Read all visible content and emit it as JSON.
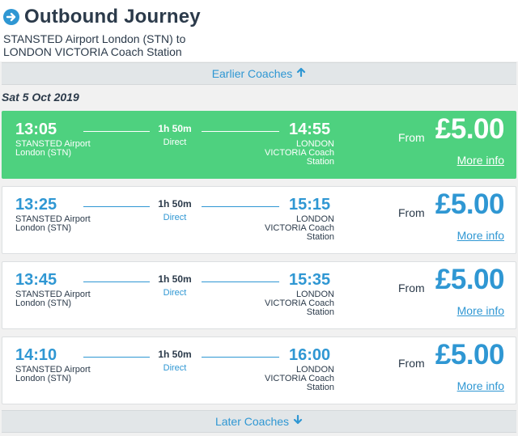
{
  "header": {
    "title": "Outbound Journey",
    "route_from": "STANSTED Airport London (STN) to",
    "route_to": "LONDON VICTORIA Coach Station"
  },
  "earlier_label": "Earlier Coaches",
  "later_label": "Later Coaches",
  "date_label": "Sat 5 Oct 2019",
  "journeys": [
    {
      "depart": "13:05",
      "arrive": "14:55",
      "duration": "1h 50m",
      "type": "Direct",
      "from_stop_line1": "STANSTED Airport",
      "from_stop_line2": "London (STN)",
      "to_stop_line1": "LONDON",
      "to_stop_line2": "VICTORIA Coach",
      "to_stop_line3": "Station",
      "from_label": "From",
      "price": "£5.00",
      "more_info": "More info",
      "selected": true
    },
    {
      "depart": "13:25",
      "arrive": "15:15",
      "duration": "1h 50m",
      "type": "Direct",
      "from_stop_line1": "STANSTED Airport",
      "from_stop_line2": "London (STN)",
      "to_stop_line1": "LONDON",
      "to_stop_line2": "VICTORIA Coach",
      "to_stop_line3": "Station",
      "from_label": "From",
      "price": "£5.00",
      "more_info": "More info",
      "selected": false
    },
    {
      "depart": "13:45",
      "arrive": "15:35",
      "duration": "1h 50m",
      "type": "Direct",
      "from_stop_line1": "STANSTED Airport",
      "from_stop_line2": "London (STN)",
      "to_stop_line1": "LONDON",
      "to_stop_line2": "VICTORIA Coach",
      "to_stop_line3": "Station",
      "from_label": "From",
      "price": "£5.00",
      "more_info": "More info",
      "selected": false
    },
    {
      "depart": "14:10",
      "arrive": "16:00",
      "duration": "1h 50m",
      "type": "Direct",
      "from_stop_line1": "STANSTED Airport",
      "from_stop_line2": "London (STN)",
      "to_stop_line1": "LONDON",
      "to_stop_line2": "VICTORIA Coach",
      "to_stop_line3": "Station",
      "from_label": "From",
      "price": "£5.00",
      "more_info": "More info",
      "selected": false
    }
  ],
  "colors": {
    "accent": "#2f97d3",
    "selected_bg": "#4ed17f",
    "text": "#2b3a4a"
  },
  "icons": {
    "title_icon": "arrow-right-circle-icon",
    "earlier_icon": "arrow-up-icon",
    "later_icon": "arrow-down-icon"
  }
}
